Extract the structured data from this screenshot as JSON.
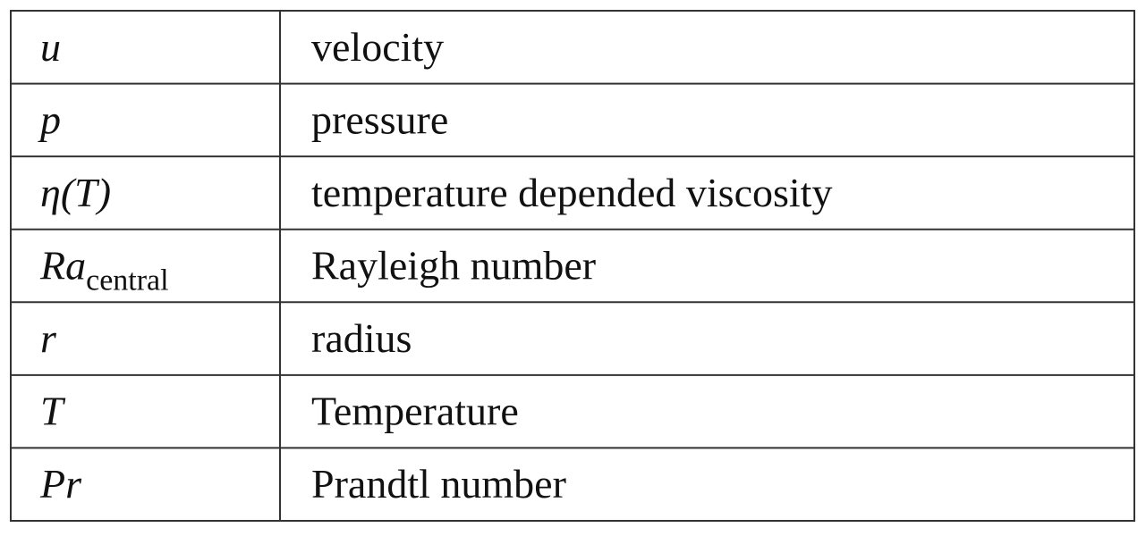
{
  "table": {
    "rows": [
      {
        "symbol": "u⃗",
        "description": "velocity"
      },
      {
        "symbol": "p",
        "description": "pressure"
      },
      {
        "symbol": "η(T)",
        "description": "temperature depended viscosity"
      },
      {
        "symbol": "Ra",
        "subscript": "central",
        "description": "Rayleigh number"
      },
      {
        "symbol": "r",
        "description": "radius"
      },
      {
        "symbol": "T",
        "description": "Temperature"
      },
      {
        "symbol": "Pr",
        "description": "Prandtl number"
      }
    ]
  }
}
